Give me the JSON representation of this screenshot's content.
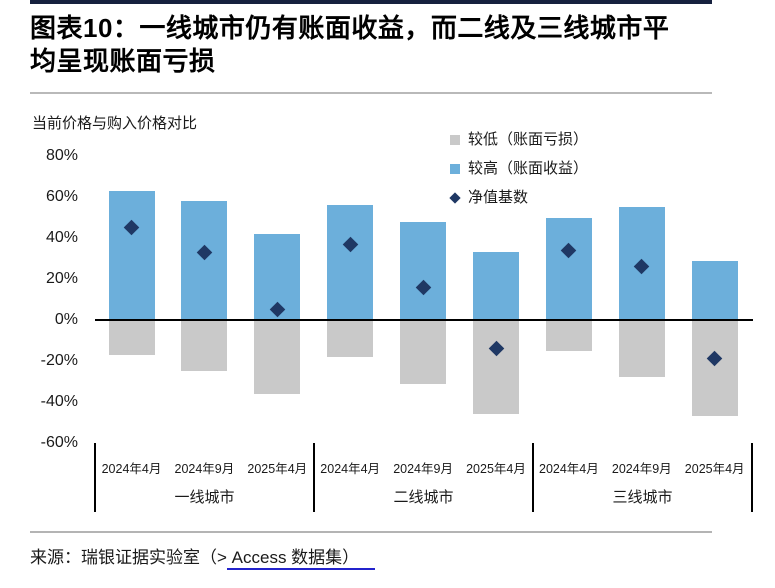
{
  "page": {
    "title": "图表10：一线城市仍有账面收益，而二线及三线城市平均呈现账面亏损",
    "source_prefix": "来源：瑞银证据实验室（>",
    "source_link": " Access 数据集）"
  },
  "colors": {
    "loss_gray": "#C9C9C9",
    "gain_blue": "#6CAFDB",
    "nav_navy": "#1F3864",
    "zero_line": "#000000",
    "divider_gray": "#b9b9b9",
    "top_rule_navy": "#16213E",
    "link_underline_blue": "#2323CC"
  },
  "chart_data": {
    "type": "bar",
    "axis_note": "当前价格与购入价格对比",
    "group_labels": [
      "一线城市",
      "二线城市",
      "三线城市"
    ],
    "periods": [
      "2024年4月",
      "2024年9月",
      "2025年4月"
    ],
    "series": [
      {
        "name": "较低（账面亏损）",
        "marker": "square",
        "color": "#C9C9C9",
        "values": [
          -17,
          -25,
          -36,
          -18,
          -31,
          -46,
          -15,
          -28,
          -47
        ]
      },
      {
        "name": "较高（账面收益）",
        "marker": "square",
        "color": "#6CAFDB",
        "values": [
          63,
          58,
          42,
          56,
          48,
          33,
          50,
          55,
          29
        ]
      },
      {
        "name": "净值基数",
        "marker": "diamond",
        "color": "#1F3864",
        "values": [
          45,
          33,
          5,
          37,
          16,
          -14,
          34,
          26,
          -19
        ]
      }
    ],
    "y_tick_labels": [
      "80%",
      "60%",
      "40%",
      "20%",
      "0%",
      "-20%",
      "-40%",
      "-60%"
    ],
    "y_tick_values": [
      80,
      60,
      40,
      20,
      0,
      -20,
      -40,
      -60
    ],
    "ylim": [
      -60,
      80
    ],
    "grid": false,
    "legend_position": "top-right"
  }
}
